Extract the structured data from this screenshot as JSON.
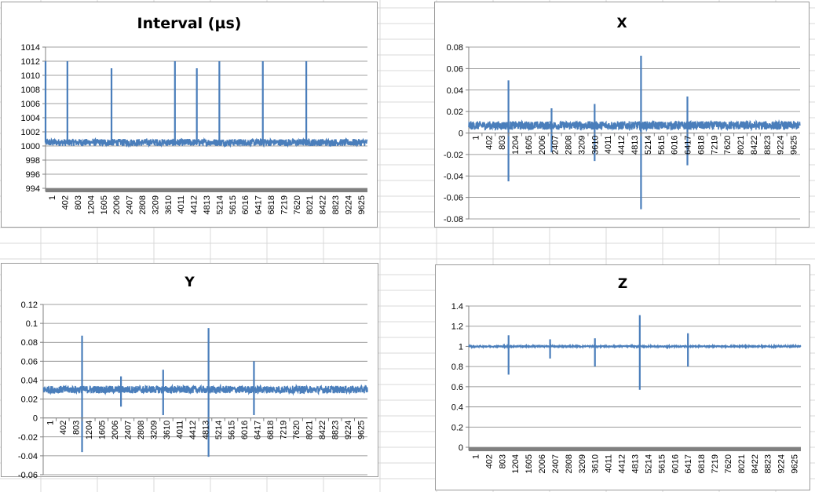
{
  "colors": {
    "series": "#4a7ebb",
    "gridline": "#808080",
    "axis": "#808080",
    "background_grid": "#d9d9d9"
  },
  "x_tick_labels": [
    "1",
    "402",
    "803",
    "1204",
    "1605",
    "2006",
    "2407",
    "2808",
    "3209",
    "3610",
    "4011",
    "4412",
    "4813",
    "5214",
    "5615",
    "6016",
    "6417",
    "6818",
    "7219",
    "7620",
    "8021",
    "8422",
    "8823",
    "9224",
    "9625"
  ],
  "chart_data": [
    {
      "type": "line",
      "title": "Interval (µs)",
      "xlabel": "",
      "ylabel": "",
      "x_range": [
        1,
        10000
      ],
      "ylim": [
        994,
        1014
      ],
      "yticks": [
        "1014",
        "1012",
        "1010",
        "1008",
        "1006",
        "1004",
        "1002",
        "1000",
        "998",
        "996",
        "994"
      ],
      "grid": true,
      "legend": "none",
      "baseline": 1000.5,
      "noise": 0.5,
      "spikes": [
        {
          "x": 1,
          "y": 1012
        },
        {
          "x": 680,
          "y": 1012
        },
        {
          "x": 2050,
          "y": 1011
        },
        {
          "x": 4020,
          "y": 1012
        },
        {
          "x": 4700,
          "y": 1011
        },
        {
          "x": 5400,
          "y": 1012
        },
        {
          "x": 6750,
          "y": 1012
        },
        {
          "x": 8100,
          "y": 1012
        }
      ]
    },
    {
      "type": "line",
      "title": "X",
      "xlabel": "",
      "ylabel": "",
      "x_range": [
        1,
        10000
      ],
      "ylim": [
        -0.08,
        0.08
      ],
      "yticks": [
        "0.08",
        "0.06",
        "0.04",
        "0.02",
        "0",
        "-0.02",
        "-0.04",
        "-0.06",
        "-0.08"
      ],
      "grid": true,
      "legend": "none",
      "baseline": 0.007,
      "noise": 0.004,
      "spikes": [
        {
          "x": 1200,
          "y": 0.049,
          "y_min": -0.045
        },
        {
          "x": 2500,
          "y": 0.023,
          "y_min": -0.018
        },
        {
          "x": 3800,
          "y": 0.027,
          "y_min": -0.026
        },
        {
          "x": 5200,
          "y": 0.072,
          "y_min": -0.071
        },
        {
          "x": 6600,
          "y": 0.034,
          "y_min": -0.03
        }
      ]
    },
    {
      "type": "line",
      "title": "Y",
      "xlabel": "",
      "ylabel": "",
      "x_range": [
        1,
        10000
      ],
      "ylim": [
        -0.06,
        0.12
      ],
      "yticks": [
        "0.12",
        "0.1",
        "0.08",
        "0.06",
        "0.04",
        "0.02",
        "0",
        "-0.02",
        "-0.04",
        "-0.06"
      ],
      "grid": true,
      "legend": "none",
      "baseline": 0.03,
      "noise": 0.004,
      "spikes": [
        {
          "x": 1200,
          "y": 0.087,
          "y_min": -0.036
        },
        {
          "x": 2400,
          "y": 0.044,
          "y_min": 0.012
        },
        {
          "x": 3700,
          "y": 0.051,
          "y_min": 0.003
        },
        {
          "x": 5100,
          "y": 0.095,
          "y_min": -0.041
        },
        {
          "x": 6500,
          "y": 0.06,
          "y_min": 0.003
        }
      ]
    },
    {
      "type": "line",
      "title": "Z",
      "xlabel": "",
      "ylabel": "",
      "x_range": [
        1,
        10000
      ],
      "ylim": [
        0,
        1.4
      ],
      "yticks": [
        "1.4",
        "1.2",
        "1",
        "0.8",
        "0.6",
        "0.4",
        "0.2",
        "0"
      ],
      "grid": true,
      "legend": "none",
      "baseline": 1.0,
      "noise": 0.006,
      "spikes": [
        {
          "x": 1200,
          "y": 1.11,
          "y_min": 0.72
        },
        {
          "x": 2450,
          "y": 1.07,
          "y_min": 0.88
        },
        {
          "x": 3800,
          "y": 1.08,
          "y_min": 0.8
        },
        {
          "x": 5150,
          "y": 1.31,
          "y_min": 0.57
        },
        {
          "x": 6600,
          "y": 1.13,
          "y_min": 0.8
        }
      ]
    }
  ]
}
